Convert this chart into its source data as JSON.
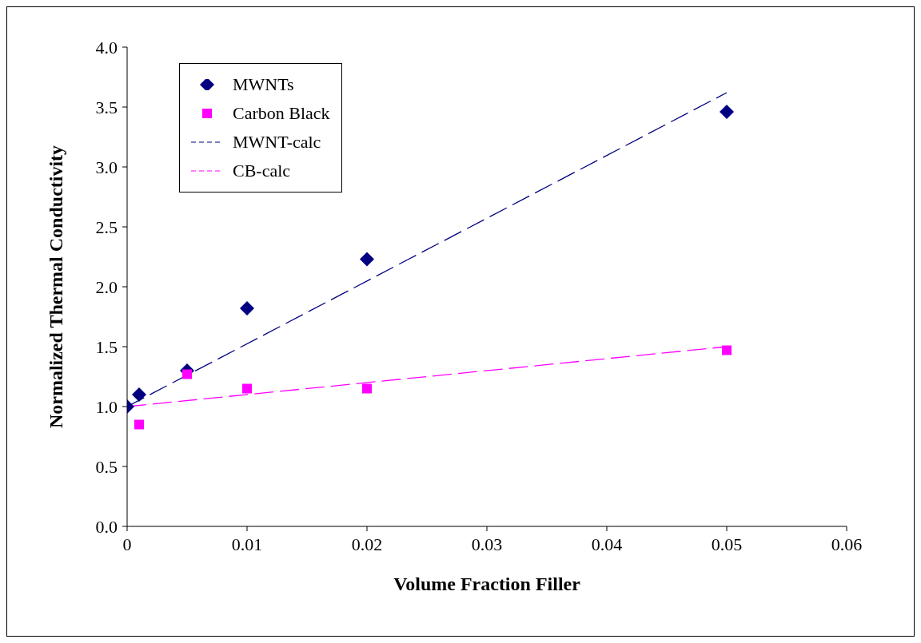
{
  "chart_data": {
    "type": "scatter",
    "xlabel": "Volume Fraction Filler",
    "ylabel": "Normalized Thermal Conductivity",
    "xlim": [
      0,
      0.06
    ],
    "xticks": [
      0,
      0.01,
      0.02,
      0.03,
      0.04,
      0.05,
      0.06
    ],
    "ylim": [
      0,
      4
    ],
    "yticks": [
      {
        "value": 0,
        "label": "0.0"
      },
      {
        "value": 0.5,
        "label": "0.5"
      },
      {
        "value": 1,
        "label": "1.0"
      },
      {
        "value": 1.5,
        "label": "1.5"
      },
      {
        "value": 2,
        "label": "2.0"
      },
      {
        "value": 2.5,
        "label": "2.5"
      },
      {
        "value": 3,
        "label": "3.0"
      },
      {
        "value": 3.5,
        "label": "3.5"
      },
      {
        "value": 4,
        "label": "4.0"
      }
    ],
    "grid": false,
    "legend": "top left",
    "series": [
      {
        "name": "MWNTs",
        "marker": "diamond",
        "color": "#000080",
        "x": [
          0,
          0.001,
          0.005,
          0.01,
          0.02,
          0.05
        ],
        "values": [
          1.0,
          1.1,
          1.3,
          1.82,
          2.23,
          3.46
        ]
      },
      {
        "name": "Carbon Black",
        "marker": "square",
        "color": "#ff00ff",
        "x": [
          0.001,
          0.005,
          0.01,
          0.02,
          0.05
        ],
        "values": [
          0.85,
          1.27,
          1.15,
          1.15,
          1.47
        ]
      },
      {
        "name": "MWNT-calc",
        "type": "line",
        "line_style": "dashed",
        "color": "#000080",
        "x": [
          0,
          0.05
        ],
        "values": [
          1.0,
          3.62
        ]
      },
      {
        "name": "CB-calc",
        "type": "line",
        "line_style": "dashed",
        "color": "#ff00ff",
        "x": [
          0,
          0.05
        ],
        "values": [
          1.0,
          1.5
        ]
      }
    ]
  }
}
